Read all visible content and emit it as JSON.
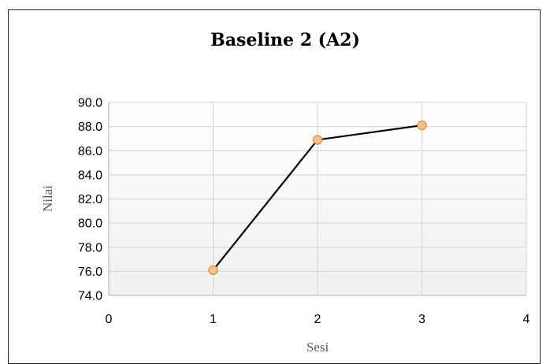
{
  "chart_data": {
    "type": "scatter",
    "title": "Baseline 2 (A2)",
    "xlabel": "Sesi",
    "ylabel": "Nilai",
    "xlim": [
      0,
      4
    ],
    "ylim": [
      74.0,
      90.0
    ],
    "x_ticks": [
      "0",
      "1",
      "2",
      "3",
      "4"
    ],
    "y_ticks": [
      "74.0",
      "76.0",
      "78.0",
      "80.0",
      "82.0",
      "84.0",
      "86.0",
      "88.0",
      "90.0"
    ],
    "grid": true,
    "series": [
      {
        "x": [
          1,
          2,
          3
        ],
        "values": [
          76.1,
          86.9,
          88.1
        ]
      }
    ],
    "colors": {
      "line": "#000000",
      "marker_fill": "#f8c08a",
      "marker_stroke": "#e58a3a",
      "grid": "#d9d9d9",
      "axis_title": "#595959"
    }
  }
}
